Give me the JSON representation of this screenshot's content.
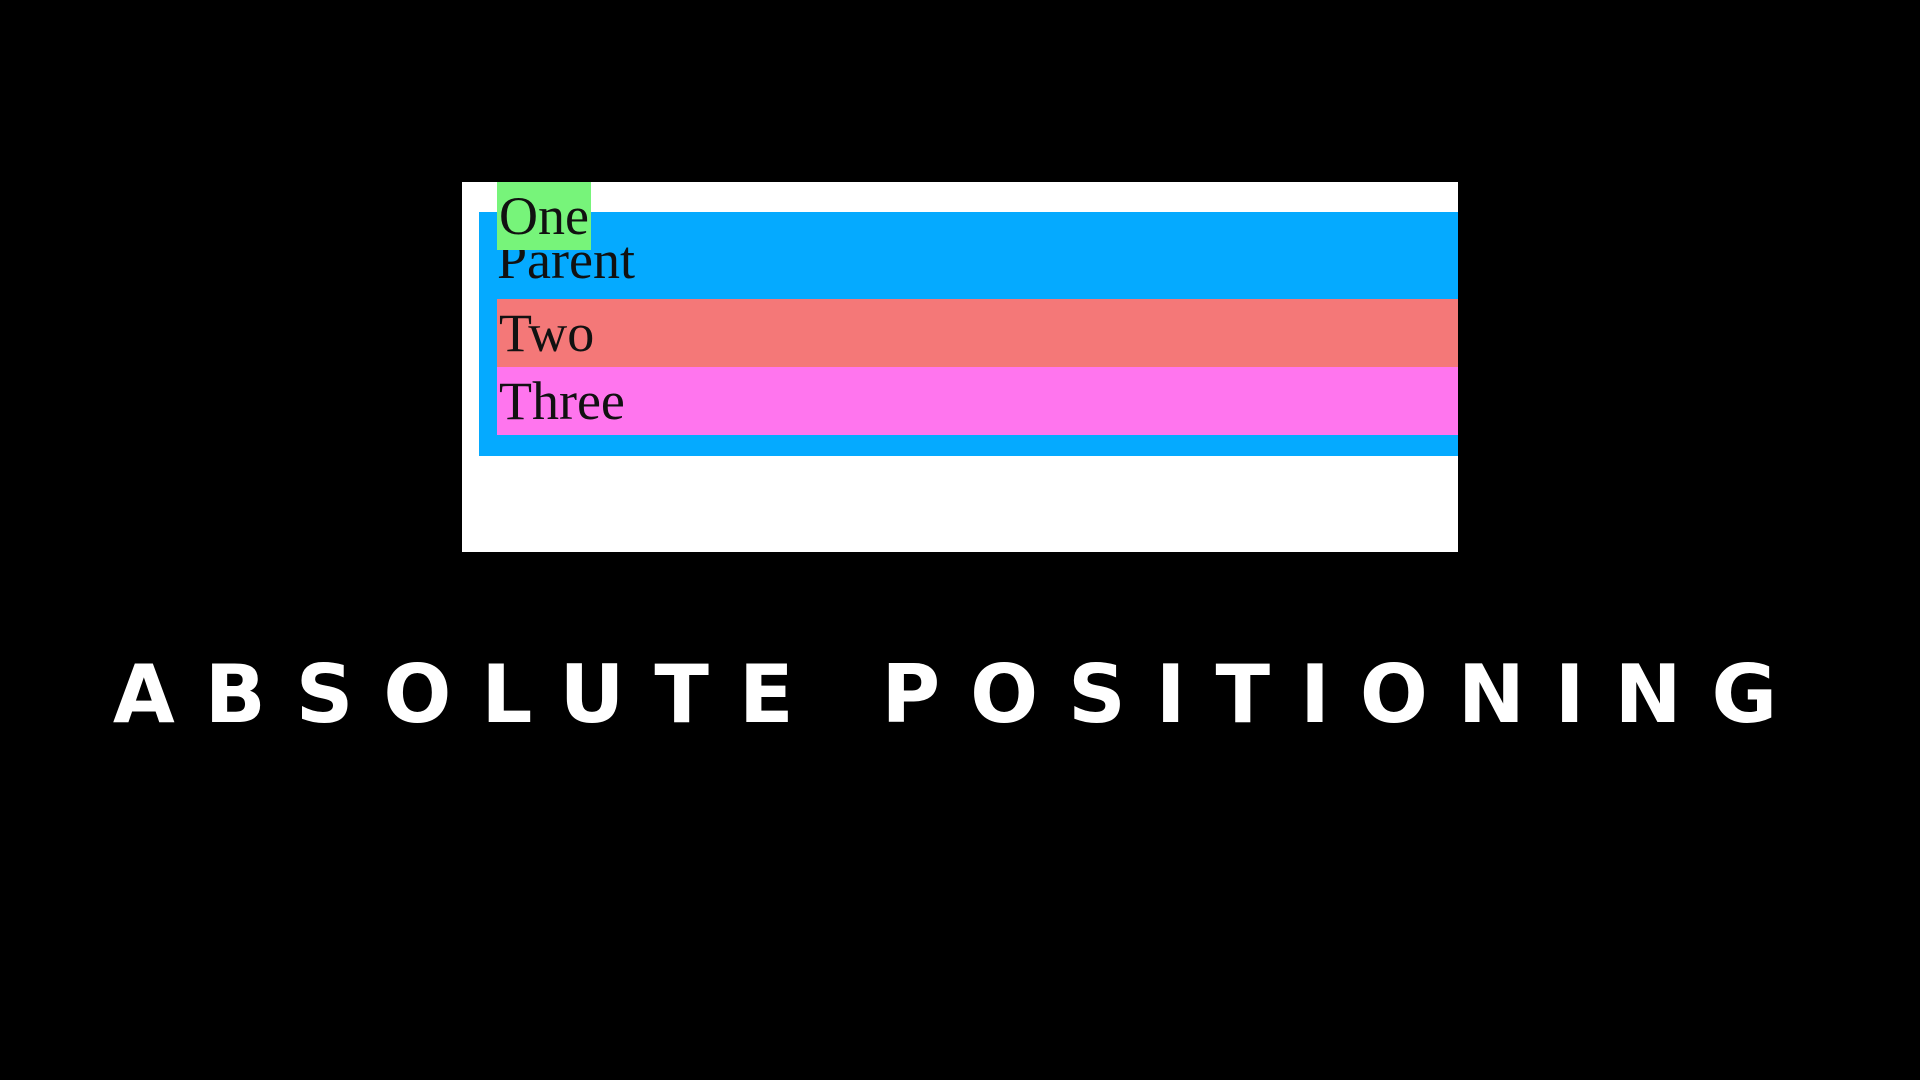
{
  "demo": {
    "parent_label": "Parent",
    "children": {
      "one": "One",
      "two": "Two",
      "three": "Three"
    },
    "colors": {
      "frame": "#ffffff",
      "parent": "#05aaff",
      "one": "#77f47a",
      "two": "#f47878",
      "three": "#ff75ee"
    }
  },
  "caption": "ABSOLUTE POSITIONING"
}
